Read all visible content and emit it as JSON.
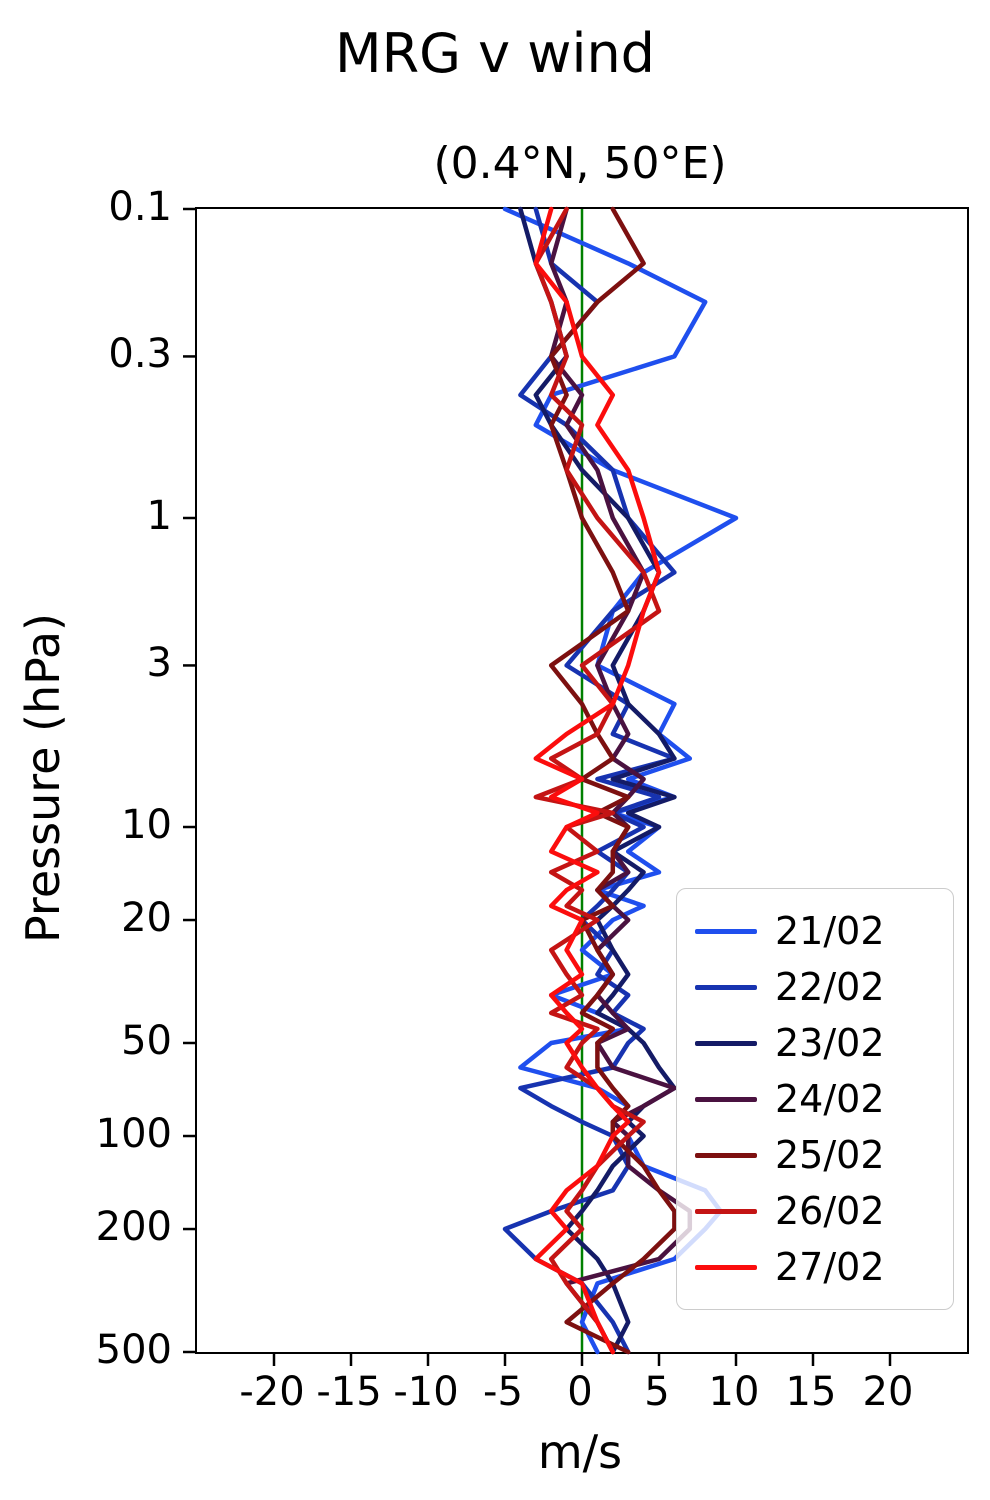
{
  "figure": {
    "title": "MRG v wind",
    "axes_title": "(0.4°N, 50°E)",
    "xlabel": "m/s",
    "ylabel": "Pressure (hPa)"
  },
  "chart_data": {
    "type": "line",
    "title": "MRG v wind",
    "subtitle": "(0.4°N, 50°E)",
    "xlabel": "m/s",
    "ylabel": "Pressure (hPa)",
    "x_units": "m/s",
    "y_units": "hPa",
    "xlim": [
      -25,
      25
    ],
    "ylim": [
      0.1,
      500
    ],
    "y_scale": "log",
    "y_inverted": true,
    "grid": false,
    "x_ticks": [
      -20,
      -15,
      -10,
      -5,
      0,
      5,
      10,
      15,
      20
    ],
    "y_ticks": [
      0.1,
      0.3,
      1,
      3,
      10,
      20,
      50,
      100,
      200,
      500
    ],
    "zero_line": {
      "x": 0,
      "color": "#008000"
    },
    "legend_position": "lower right",
    "pressure_levels": [
      0.1,
      0.15,
      0.2,
      0.3,
      0.4,
      0.5,
      0.7,
      1,
      1.5,
      2,
      3,
      4,
      5,
      6,
      7,
      8,
      9,
      10,
      12,
      14,
      16,
      18,
      20,
      25,
      30,
      35,
      40,
      45,
      50,
      60,
      70,
      80,
      90,
      100,
      125,
      150,
      175,
      200,
      250,
      300,
      400,
      500
    ],
    "series": [
      {
        "name": "21/02",
        "color": "#1f4fee",
        "values": [
          -5,
          3,
          8,
          6,
          -2,
          -3,
          2,
          10,
          4,
          2,
          1,
          6,
          5,
          7,
          3,
          6,
          2,
          5,
          3,
          5,
          1,
          4,
          2,
          0,
          2,
          -2,
          1,
          3,
          -2,
          -4,
          1,
          3,
          2,
          3,
          4,
          8,
          9,
          8,
          6,
          1,
          0,
          1
        ]
      },
      {
        "name": "22/02",
        "color": "#1733b0",
        "values": [
          -3,
          -2,
          1,
          -2,
          -4,
          -1,
          2,
          3,
          6,
          2,
          -1,
          3,
          2,
          6,
          1,
          5,
          2,
          4,
          1,
          3,
          2,
          1,
          0,
          2,
          1,
          3,
          2,
          4,
          3,
          2,
          -4,
          -2,
          0,
          2,
          3,
          2,
          -2,
          -5,
          -3,
          0,
          2,
          3
        ]
      },
      {
        "name": "23/02",
        "color": "#141b66",
        "values": [
          -4,
          -3,
          -2,
          -1,
          -3,
          -2,
          0,
          3,
          5,
          4,
          2,
          3,
          5,
          6,
          2,
          6,
          3,
          5,
          2,
          4,
          3,
          2,
          1,
          2,
          3,
          2,
          1,
          3,
          4,
          5,
          6,
          4,
          3,
          4,
          2,
          1,
          0,
          -1,
          1,
          2,
          3,
          2
        ]
      },
      {
        "name": "24/02",
        "color": "#4a1240",
        "values": [
          -1,
          -2,
          -1,
          -2,
          0,
          -1,
          1,
          2,
          4,
          3,
          1,
          2,
          3,
          2,
          4,
          3,
          2,
          3,
          2,
          3,
          1,
          2,
          3,
          1,
          2,
          1,
          2,
          3,
          1,
          2,
          6,
          4,
          2,
          3,
          3,
          5,
          7,
          7,
          5,
          -1,
          1,
          2
        ]
      },
      {
        "name": "25/02",
        "color": "#7d1010",
        "values": [
          2,
          4,
          1,
          -2,
          -1,
          -2,
          -1,
          0,
          2,
          3,
          -2,
          0,
          1,
          2,
          0,
          3,
          1,
          3,
          2,
          2,
          1,
          2,
          0,
          1,
          2,
          1,
          0,
          2,
          1,
          1,
          2,
          3,
          2,
          2,
          4,
          5,
          6,
          6,
          4,
          2,
          -1,
          3
        ]
      },
      {
        "name": "26/02",
        "color": "#c41414",
        "values": [
          -1,
          -3,
          -2,
          -1,
          -2,
          0,
          -1,
          1,
          4,
          5,
          0,
          2,
          1,
          -2,
          0,
          -3,
          2,
          -1,
          1,
          -2,
          0,
          -1,
          1,
          -2,
          -1,
          0,
          -2,
          1,
          0,
          -1,
          1,
          2,
          4,
          3,
          1,
          0,
          -1,
          0,
          -2,
          -1,
          1,
          2
        ]
      },
      {
        "name": "27/02",
        "color": "#fb0d0d",
        "values": [
          -2,
          -3,
          -1,
          0,
          2,
          1,
          3,
          4,
          5,
          4,
          3,
          2,
          -1,
          -3,
          0,
          -2,
          1,
          -1,
          -2,
          1,
          -1,
          -2,
          0,
          -1,
          0,
          -2,
          -1,
          0,
          -1,
          0,
          1,
          2,
          3,
          2,
          1,
          -1,
          -2,
          -1,
          -3,
          0,
          1,
          2
        ]
      }
    ]
  }
}
